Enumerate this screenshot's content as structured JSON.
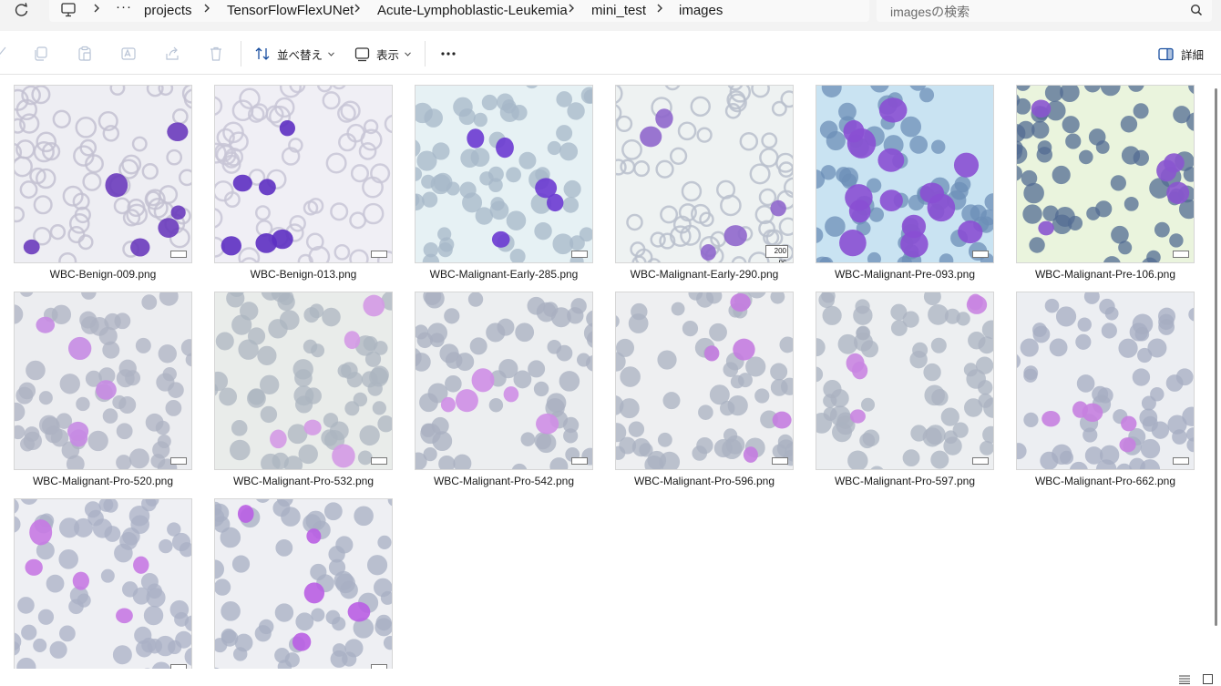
{
  "address_bar": {
    "crumbs": [
      "projects",
      "TensorFlowFlexUNet",
      "Acute-Lymphoblastic-Leukemia",
      "mini_test",
      "images"
    ],
    "overflow": "···"
  },
  "search": {
    "placeholder": "imagesの検索"
  },
  "toolbar": {
    "sort_label": "並べ替え",
    "view_label": "表示",
    "more": "···",
    "details_label": "詳細"
  },
  "files": [
    {
      "name": "WBC-Benign-009.png",
      "bg": "#eeeef3",
      "cell": "#c3c1d1",
      "blast": "#6a3bbd",
      "style": "benign"
    },
    {
      "name": "WBC-Benign-013.png",
      "bg": "#f0eff5",
      "cell": "#c8c5d6",
      "blast": "#5d2fc2",
      "style": "benign"
    },
    {
      "name": "WBC-Malignant-Early-285.png",
      "bg": "#e6f1f4",
      "cell": "#a7b8c9",
      "blast": "#6b3ad1",
      "style": "early"
    },
    {
      "name": "WBC-Malignant-Early-290.png",
      "bg": "#eef2f2",
      "cell": "#b9c0cc",
      "blast": "#8f67cc",
      "style": "early2"
    },
    {
      "name": "WBC-Malignant-Pre-093.png",
      "bg": "#c9e3f2",
      "cell": "#6d8fb8",
      "blast": "#8a4fd3",
      "style": "pre"
    },
    {
      "name": "WBC-Malignant-Pre-106.png",
      "bg": "#eaf4dd",
      "cell": "#536c93",
      "blast": "#8a55cf",
      "style": "pre2"
    },
    {
      "name": "WBC-Malignant-Pro-520.png",
      "bg": "#ecedf0",
      "cell": "#aeb3c3",
      "blast": "#c68be3",
      "style": "pro"
    },
    {
      "name": "WBC-Malignant-Pro-532.png",
      "bg": "#e9ecea",
      "cell": "#adb6c1",
      "blast": "#d49ae6",
      "style": "pro"
    },
    {
      "name": "WBC-Malignant-Pro-542.png",
      "bg": "#eceef0",
      "cell": "#a9b0c1",
      "blast": "#cf8ee6",
      "style": "pro"
    },
    {
      "name": "WBC-Malignant-Pro-596.png",
      "bg": "#eeeff1",
      "cell": "#aab2c2",
      "blast": "#c47ce0",
      "style": "pro"
    },
    {
      "name": "WBC-Malignant-Pro-597.png",
      "bg": "#edeff1",
      "cell": "#abb3c1",
      "blast": "#c985e1",
      "style": "pro"
    },
    {
      "name": "WBC-Malignant-Pro-662.png",
      "bg": "#eceef2",
      "cell": "#a6adc2",
      "blast": "#c77fe0",
      "style": "pro"
    },
    {
      "name": "",
      "bg": "#eeeff3",
      "cell": "#aab1c6",
      "blast": "#c779e3",
      "style": "pro"
    },
    {
      "name": "",
      "bg": "#eeeff3",
      "cell": "#a8b0c4",
      "blast": "#b95ee3",
      "style": "pro"
    }
  ],
  "scale_bar_label": "200 pc"
}
